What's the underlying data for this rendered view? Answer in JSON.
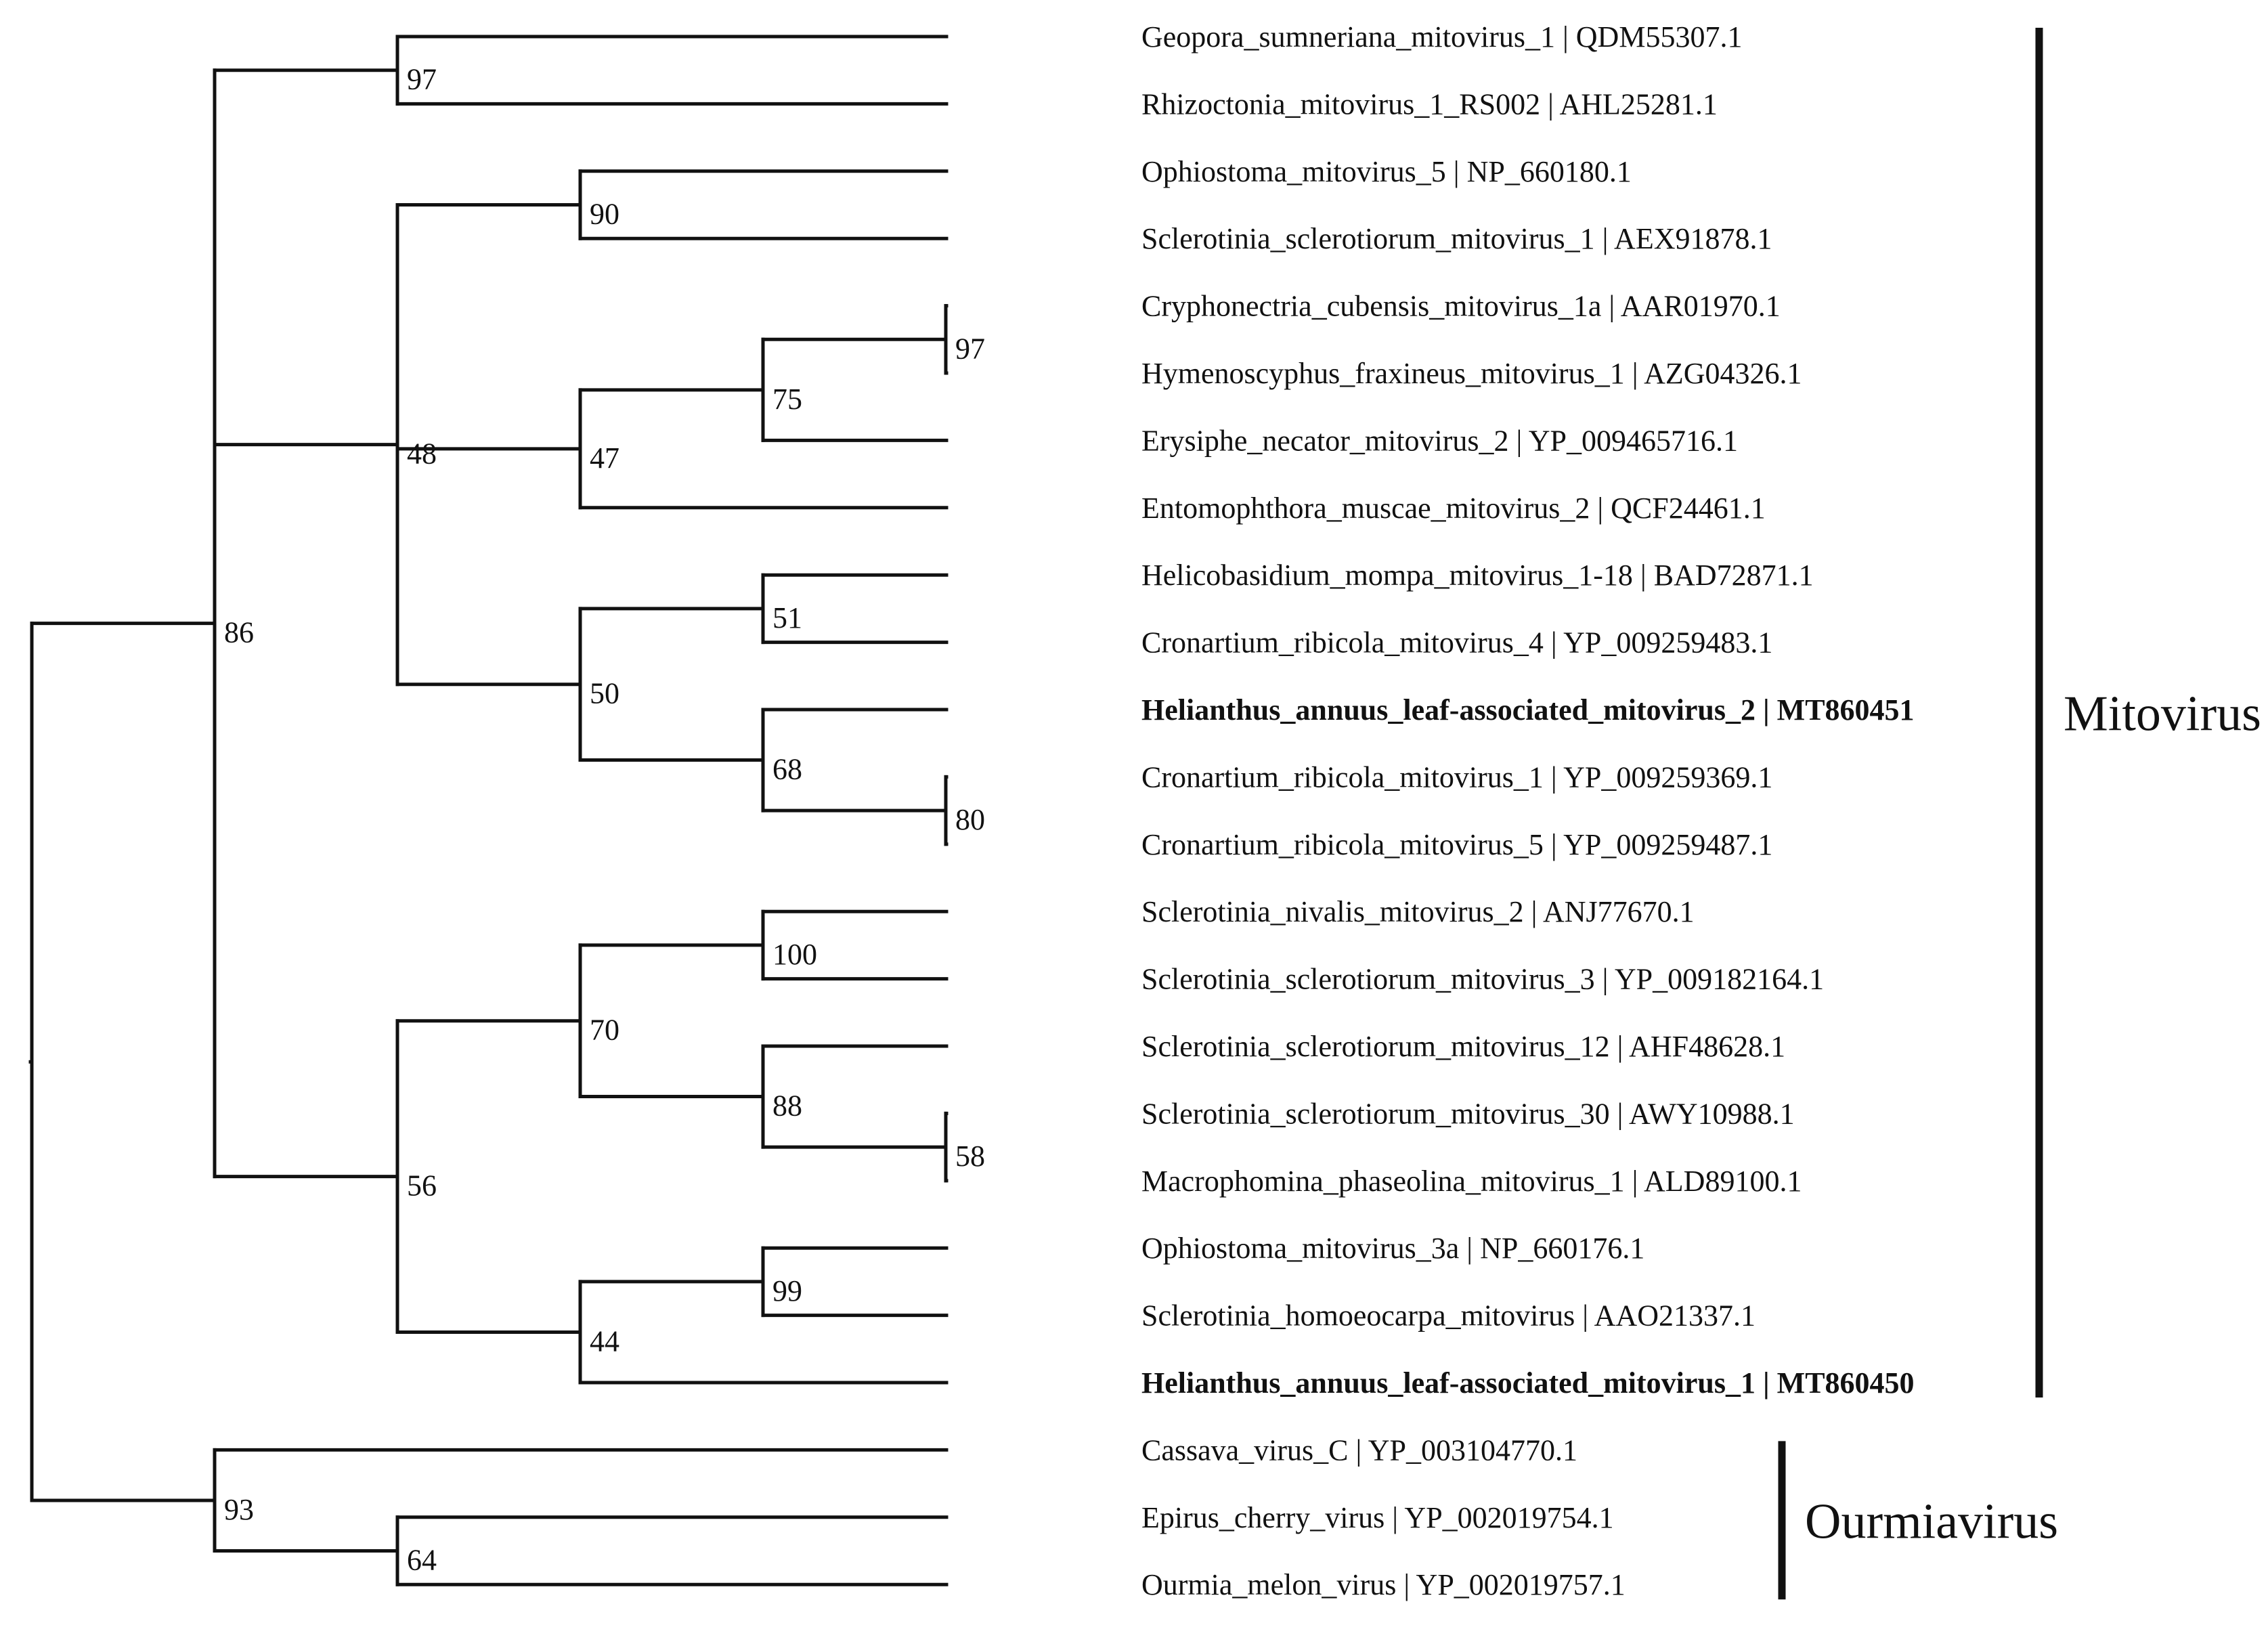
{
  "tree": {
    "name": "root",
    "children": [
      {
        "name": "n86",
        "support": "86",
        "children": [
          {
            "name": "n97a",
            "support": "97",
            "children": [
              {
                "leaf": "Geopora_sumneriana_mitovirus_1 | QDM55307.1"
              },
              {
                "leaf": "Rhizoctonia_mitovirus_1_RS002 | AHL25281.1"
              }
            ]
          },
          {
            "name": "n48",
            "support": "48",
            "children": [
              {
                "name": "n90",
                "support": "90",
                "children": [
                  {
                    "leaf": "Ophiostoma_mitovirus_5 | NP_660180.1"
                  },
                  {
                    "leaf": "Sclerotinia_sclerotiorum_mitovirus_1 | AEX91878.1"
                  }
                ]
              },
              {
                "name": "n47",
                "support": "47",
                "children": [
                  {
                    "name": "n75",
                    "support": "75",
                    "children": [
                      {
                        "name": "n97b",
                        "support": "97",
                        "children": [
                          {
                            "leaf": "Cryphonectria_cubensis_mitovirus_1a | AAR01970.1"
                          },
                          {
                            "leaf": "Hymenoscyphus_fraxineus_mitovirus_1 | AZG04326.1"
                          }
                        ]
                      },
                      {
                        "leaf": "Erysiphe_necator_mitovirus_2 | YP_009465716.1"
                      }
                    ]
                  },
                  {
                    "leaf": "Entomophthora_muscae_mitovirus_2 | QCF24461.1"
                  }
                ]
              },
              {
                "name": "n50",
                "support": "50",
                "children": [
                  {
                    "name": "n51",
                    "support": "51",
                    "children": [
                      {
                        "leaf": "Helicobasidium_mompa_mitovirus_1-18 | BAD72871.1"
                      },
                      {
                        "leaf": "Cronartium_ribicola_mitovirus_4 | YP_009259483.1"
                      }
                    ]
                  },
                  {
                    "name": "n68",
                    "support": "68",
                    "children": [
                      {
                        "leaf": "Helianthus_annuus_leaf-associated_mitovirus_2 | MT860451",
                        "bold": true
                      },
                      {
                        "name": "n80",
                        "support": "80",
                        "children": [
                          {
                            "leaf": "Cronartium_ribicola_mitovirus_1 | YP_009259369.1"
                          },
                          {
                            "leaf": "Cronartium_ribicola_mitovirus_5 | YP_009259487.1"
                          }
                        ]
                      }
                    ]
                  }
                ]
              }
            ]
          },
          {
            "name": "n56",
            "support": "56",
            "children": [
              {
                "name": "n70",
                "support": "70",
                "children": [
                  {
                    "name": "n100",
                    "support": "100",
                    "children": [
                      {
                        "leaf": "Sclerotinia_nivalis_mitovirus_2 | ANJ77670.1"
                      },
                      {
                        "leaf": "Sclerotinia_sclerotiorum_mitovirus_3 | YP_009182164.1"
                      }
                    ]
                  },
                  {
                    "name": "n88",
                    "support": "88",
                    "children": [
                      {
                        "leaf": "Sclerotinia_sclerotiorum_mitovirus_12 | AHF48628.1"
                      },
                      {
                        "name": "n58",
                        "support": "58",
                        "children": [
                          {
                            "leaf": "Sclerotinia_sclerotiorum_mitovirus_30 | AWY10988.1"
                          },
                          {
                            "leaf": "Macrophomina_phaseolina_mitovirus_1 | ALD89100.1"
                          }
                        ]
                      }
                    ]
                  }
                ]
              },
              {
                "name": "n44",
                "support": "44",
                "children": [
                  {
                    "name": "n99",
                    "support": "99",
                    "children": [
                      {
                        "leaf": "Ophiostoma_mitovirus_3a | NP_660176.1"
                      },
                      {
                        "leaf": "Sclerotinia_homoeocarpa_mitovirus | AAO21337.1"
                      }
                    ]
                  },
                  {
                    "leaf": "Helianthus_annuus_leaf-associated_mitovirus_1 | MT860450",
                    "bold": true
                  }
                ]
              }
            ]
          }
        ]
      },
      {
        "name": "n93",
        "support": "93",
        "children": [
          {
            "leaf": "Cassava_virus_C | YP_003104770.1"
          },
          {
            "name": "n64",
            "support": "64",
            "children": [
              {
                "leaf": "Epirus_cherry_virus | YP_002019754.1"
              },
              {
                "leaf": "Ourmia_melon_virus | YP_002019757.1"
              }
            ]
          }
        ]
      }
    ]
  },
  "clades": [
    {
      "label": "Mitovirus",
      "first_leaf": 0,
      "last_leaf": 20
    },
    {
      "label": "Ourmiavirus",
      "first_leaf": 21,
      "last_leaf": 23
    }
  ]
}
